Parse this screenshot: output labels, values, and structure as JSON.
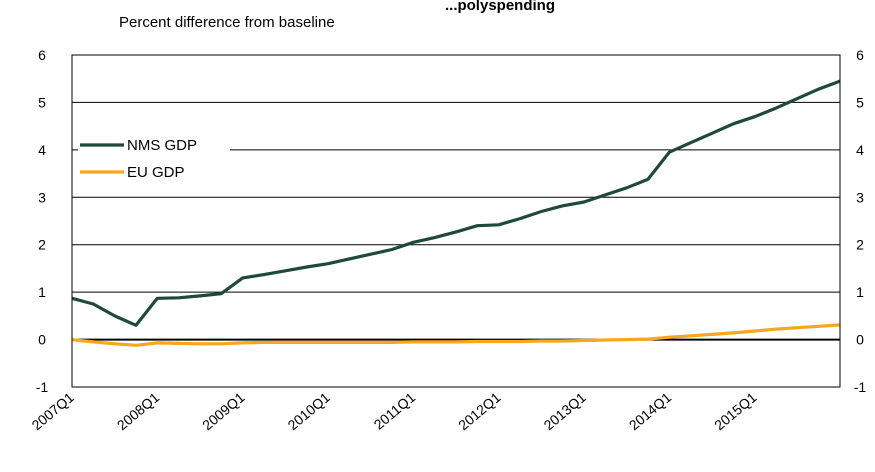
{
  "chart_data": {
    "type": "line",
    "title": "...polyspending",
    "subtitle": "Percent difference from baseline",
    "x_tick_labels": [
      "2007Q1",
      "2008Q1",
      "2009Q1",
      "2010Q1",
      "2011Q1",
      "2012Q1",
      "2013Q1",
      "2014Q1",
      "2015Q1"
    ],
    "ylim": [
      -1,
      6
    ],
    "y_ticks": [
      "-1",
      "0",
      "1",
      "2",
      "3",
      "4",
      "5",
      "6"
    ],
    "grid": true,
    "legend_position": "top-left",
    "colors": {
      "NMS GDP": "#1f4a3a",
      "EU GDP": "#f5a81c"
    },
    "x": [
      "2007Q1",
      "2007Q2",
      "2007Q3",
      "2007Q4",
      "2008Q1",
      "2008Q2",
      "2008Q3",
      "2008Q4",
      "2009Q1",
      "2009Q2",
      "2009Q3",
      "2009Q4",
      "2010Q1",
      "2010Q2",
      "2010Q3",
      "2010Q4",
      "2011Q1",
      "2011Q2",
      "2011Q3",
      "2011Q4",
      "2012Q1",
      "2012Q2",
      "2012Q3",
      "2012Q4",
      "2013Q1",
      "2013Q2",
      "2013Q3",
      "2013Q4",
      "2014Q1",
      "2014Q2",
      "2014Q3",
      "2014Q4",
      "2015Q1",
      "2015Q2",
      "2015Q3",
      "2015Q4",
      "2016Q1"
    ],
    "series": [
      {
        "name": "NMS GDP",
        "values": [
          0.87,
          0.75,
          0.5,
          0.3,
          0.87,
          0.88,
          0.92,
          0.97,
          1.3,
          1.37,
          1.45,
          1.53,
          1.6,
          1.7,
          1.8,
          1.9,
          2.05,
          2.15,
          2.27,
          2.4,
          2.42,
          2.55,
          2.7,
          2.82,
          2.9,
          3.05,
          3.2,
          3.38,
          3.95,
          4.15,
          4.35,
          4.55,
          4.7,
          4.88,
          5.08,
          5.28,
          5.45
        ]
      },
      {
        "name": "EU GDP",
        "values": [
          0.0,
          -0.05,
          -0.09,
          -0.12,
          -0.07,
          -0.08,
          -0.09,
          -0.09,
          -0.07,
          -0.06,
          -0.06,
          -0.06,
          -0.06,
          -0.06,
          -0.06,
          -0.06,
          -0.05,
          -0.05,
          -0.05,
          -0.04,
          -0.04,
          -0.04,
          -0.03,
          -0.03,
          -0.02,
          -0.01,
          0.0,
          0.01,
          0.05,
          0.08,
          0.11,
          0.14,
          0.18,
          0.22,
          0.25,
          0.28,
          0.31
        ]
      }
    ]
  }
}
